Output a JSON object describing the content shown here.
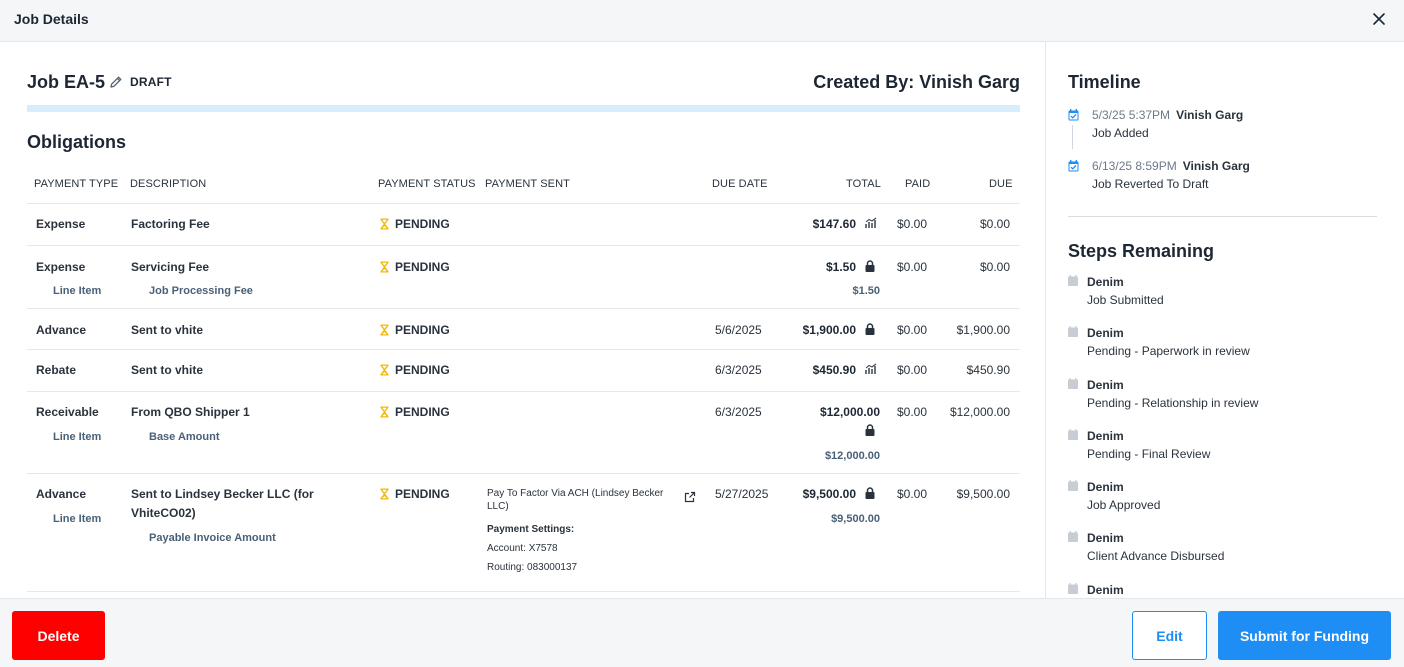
{
  "modal": {
    "title": "Job Details"
  },
  "job": {
    "title": "Job EA-5",
    "status": "DRAFT",
    "created_by": "Created By: Vinish Garg",
    "progress": 1.0
  },
  "obligations": {
    "title": "Obligations",
    "columns": [
      "PAYMENT TYPE",
      "DESCRIPTION",
      "PAYMENT STATUS",
      "PAYMENT SENT",
      "DUE DATE",
      "TOTAL",
      "PAID",
      "DUE"
    ],
    "rows": [
      {
        "type": "Expense",
        "description": "Factoring Fee",
        "status": "PENDING",
        "due_date": "",
        "total": "$147.60",
        "total_icon": "chart-icon",
        "paid": "$0.00",
        "due": "$0.00"
      },
      {
        "type": "Expense",
        "description": "Servicing Fee",
        "status": "PENDING",
        "due_date": "",
        "total": "$1.50",
        "total_icon": "lock-icon",
        "paid": "$0.00",
        "due": "$0.00",
        "sub": {
          "type": "Line Item",
          "description": "Job Processing Fee",
          "total": "$1.50"
        }
      },
      {
        "type": "Advance",
        "description": "Sent to vhite",
        "status": "PENDING",
        "due_date": "5/6/2025",
        "total": "$1,900.00",
        "total_icon": "lock-icon",
        "paid": "$0.00",
        "due": "$1,900.00"
      },
      {
        "type": "Rebate",
        "description": "Sent to vhite",
        "status": "PENDING",
        "due_date": "6/3/2025",
        "total": "$450.90",
        "total_icon": "chart-icon",
        "paid": "$0.00",
        "due": "$450.90"
      },
      {
        "type": "Receivable",
        "description": "From QBO Shipper 1",
        "status": "PENDING",
        "due_date": "6/3/2025",
        "total": "$12,000.00",
        "total_icon": "lock-icon",
        "paid": "$0.00",
        "due": "$12,000.00",
        "sub": {
          "type": "Line Item",
          "description": "Base Amount",
          "total": "$12,000.00"
        }
      },
      {
        "type": "Advance",
        "description_line1": "Sent to Lindsey Becker LLC (for",
        "description_line2": "VhiteCO02)",
        "status": "PENDING",
        "payment_sent": {
          "method_line1": "Pay To Factor Via ACH (Lindsey Becker",
          "method_line2": "LLC)",
          "settings_label": "Payment Settings:",
          "account": "Account: X7578",
          "routing": "Routing: 083000137"
        },
        "due_date": "5/27/2025",
        "total": "$9,500.00",
        "total_icon": "lock-icon",
        "paid": "$0.00",
        "due": "$9,500.00",
        "sub": {
          "type": "Line Item",
          "description": "Payable Invoice Amount",
          "total": "$9,500.00"
        }
      }
    ]
  },
  "timeline": {
    "title": "Timeline",
    "items": [
      {
        "time": "5/3/25 5:37PM",
        "user": "Vinish Garg",
        "event": "Job Added"
      },
      {
        "time": "6/13/25 8:59PM",
        "user": "Vinish Garg",
        "event": "Job Reverted To Draft"
      }
    ]
  },
  "steps": {
    "title": "Steps Remaining",
    "items": [
      {
        "owner": "Denim",
        "name": "Job Submitted"
      },
      {
        "owner": "Denim",
        "name": "Pending - Paperwork in review"
      },
      {
        "owner": "Denim",
        "name": "Pending - Relationship in review"
      },
      {
        "owner": "Denim",
        "name": "Pending - Final Review"
      },
      {
        "owner": "Denim",
        "name": "Job Approved"
      },
      {
        "owner": "Denim",
        "name": "Client Advance Disbursed"
      },
      {
        "owner": "Denim",
        "name": ""
      }
    ]
  },
  "footer": {
    "delete_label": "Delete",
    "edit_label": "Edit",
    "submit_label": "Submit for Funding"
  },
  "colors": {
    "accent": "#1e8ef5",
    "danger": "#ff0000",
    "pending": "#f5b800",
    "progress": "#d6eefb"
  }
}
